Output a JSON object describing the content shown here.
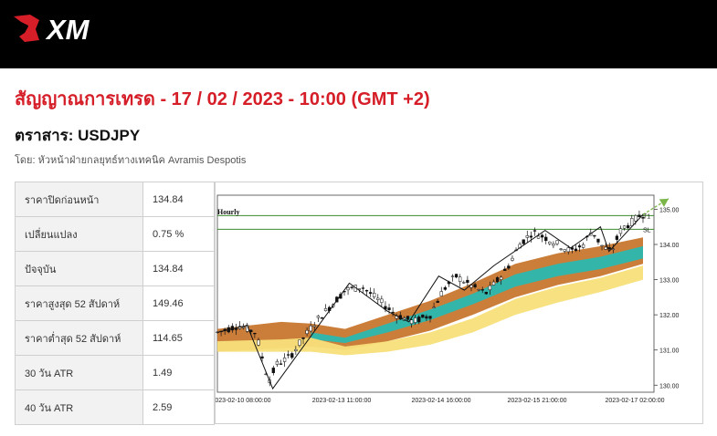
{
  "header": {
    "logo_text": "XM",
    "brand_color": "#d51e28",
    "background": "#000000"
  },
  "signal": {
    "title": "สัญญาณการเทรด - 17 / 02 / 2023 - 10:00 (GMT +2)",
    "instrument": "ตราสาร: USDJPY",
    "author": "โดย: หัวหน้าฝ่ายกลยุทธ์ทางเทคนิค Avramis Despotis"
  },
  "stats": [
    {
      "label": "ราคาปิดก่อนหน้า",
      "value": "134.84"
    },
    {
      "label": "เปลี่ยนแปลง",
      "value": "0.75 %"
    },
    {
      "label": "ปัจจุบัน",
      "value": "134.84"
    },
    {
      "label": "ราคาสูงสุด 52 สัปดาห์",
      "value": "149.46"
    },
    {
      "label": "ราคาต่ำสุด 52 สัปดาห์",
      "value": "114.65"
    },
    {
      "label": "30 วัน ATR",
      "value": "1.49"
    },
    {
      "label": "40 วัน ATR",
      "value": "2.59"
    }
  ],
  "chart_data": {
    "type": "line",
    "timeframe_label": "Hourly",
    "ylim": [
      129.8,
      135.4
    ],
    "y_ticks": [
      {
        "value": 135.0,
        "label": "135.00"
      },
      {
        "value": 134.0,
        "label": "134.00"
      },
      {
        "value": 133.0,
        "label": "133.00"
      },
      {
        "value": 132.0,
        "label": "132.00"
      },
      {
        "value": 131.0,
        "label": "131.00"
      },
      {
        "value": 130.0,
        "label": "130.00"
      }
    ],
    "x_ticks": [
      "2023-02-10 08:00:00",
      "2023-02-13 11:00:00",
      "2023-02-14 16:00:00",
      "2023-02-15 21:00:00",
      "2023-02-17 02:00:00"
    ],
    "levels": [
      {
        "name": "T1",
        "value": 134.82,
        "color": "#3c8a2e"
      },
      {
        "name": "SL",
        "value": 134.43,
        "color": "#3c8a2e"
      }
    ],
    "price": {
      "x": [
        0,
        5,
        9,
        12,
        14,
        17,
        20,
        23,
        27,
        30,
        34,
        38,
        42,
        46,
        50,
        53,
        56,
        60,
        63,
        66,
        68,
        71,
        74,
        77,
        80,
        83,
        86,
        88,
        90,
        92,
        93,
        94,
        95,
        97,
        99,
        100
      ],
      "y": [
        131.5,
        131.7,
        131.5,
        130.1,
        130.6,
        130.8,
        131.3,
        131.8,
        132.3,
        132.7,
        132.8,
        132.4,
        132.0,
        131.8,
        132.0,
        132.7,
        133.1,
        132.8,
        132.6,
        133.0,
        133.3,
        134.0,
        134.35,
        134.2,
        134.0,
        133.8,
        134.0,
        134.4,
        134.0,
        133.8,
        133.9,
        134.2,
        134.45,
        134.6,
        134.8,
        134.85
      ]
    },
    "zigzag": {
      "x": [
        0,
        7,
        13,
        31,
        40,
        45,
        52,
        58,
        65,
        77,
        83,
        90,
        92,
        100
      ],
      "y": [
        131.5,
        131.7,
        129.9,
        132.9,
        132.1,
        131.8,
        133.1,
        132.7,
        133.4,
        134.4,
        133.9,
        134.5,
        133.8,
        134.85
      ]
    },
    "forecast": {
      "from": [
        100,
        134.85
      ],
      "to": [
        106,
        135.3
      ],
      "color": "#7ab648"
    },
    "bands": [
      {
        "name": "outer",
        "color": "#c8772f",
        "x": [
          0,
          15,
          22,
          30,
          40,
          50,
          60,
          70,
          80,
          90,
          100
        ],
        "upper": [
          131.6,
          131.8,
          131.75,
          131.6,
          132.0,
          132.4,
          132.9,
          133.45,
          133.75,
          133.95,
          134.2
        ],
        "lower": [
          130.95,
          131.05,
          131.1,
          131.0,
          131.25,
          131.55,
          132.0,
          132.5,
          132.85,
          133.1,
          133.45
        ]
      },
      {
        "name": "middle",
        "color": "#2bb8b0",
        "x": [
          22,
          30,
          40,
          50,
          60,
          70,
          80,
          90,
          100
        ],
        "upper": [
          131.5,
          131.35,
          131.75,
          132.15,
          132.6,
          133.15,
          133.45,
          133.65,
          133.95
        ],
        "lower": [
          131.3,
          131.2,
          131.5,
          131.85,
          132.3,
          132.8,
          133.1,
          133.3,
          133.6
        ]
      },
      {
        "name": "inner",
        "color": "#f7df7a",
        "x": [
          0,
          15,
          22,
          30,
          40,
          50,
          60,
          70,
          80,
          90,
          100
        ],
        "upper": [
          131.25,
          131.3,
          131.35,
          131.1,
          131.25,
          131.5,
          131.9,
          132.45,
          132.8,
          133.05,
          133.4
        ],
        "lower": [
          130.95,
          130.95,
          130.95,
          130.85,
          130.95,
          131.15,
          131.5,
          132.0,
          132.35,
          132.65,
          133.0
        ]
      }
    ]
  }
}
